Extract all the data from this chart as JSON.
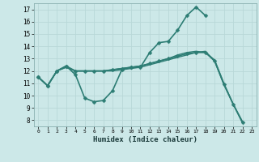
{
  "xlabel": "Humidex (Indice chaleur)",
  "background_color": "#cce8e8",
  "grid_color": "#b8d8d8",
  "line_color": "#2d7d74",
  "xlim": [
    -0.5,
    23.5
  ],
  "ylim": [
    7.5,
    17.5
  ],
  "yticks": [
    8,
    9,
    10,
    11,
    12,
    13,
    14,
    15,
    16,
    17
  ],
  "xticks": [
    0,
    1,
    2,
    3,
    4,
    5,
    6,
    7,
    8,
    9,
    10,
    11,
    12,
    13,
    14,
    15,
    16,
    17,
    18,
    19,
    20,
    21,
    22,
    23
  ],
  "series": [
    {
      "x": [
        0,
        1,
        2,
        3,
        4,
        5,
        6,
        7,
        8,
        9,
        10,
        11,
        12,
        13,
        14,
        15,
        16,
        17,
        18
      ],
      "y": [
        11.5,
        10.8,
        12.0,
        12.4,
        11.7,
        9.8,
        9.5,
        9.6,
        10.4,
        12.1,
        12.3,
        12.3,
        13.5,
        14.3,
        14.4,
        15.3,
        16.5,
        17.2,
        16.5
      ],
      "marker": true,
      "linewidth": 1.2
    },
    {
      "x": [
        0,
        1,
        2,
        3,
        4,
        5,
        6,
        7,
        8,
        9,
        10,
        11,
        12,
        13,
        14,
        15,
        16,
        17,
        18,
        19,
        20,
        21,
        22
      ],
      "y": [
        11.5,
        10.8,
        12.0,
        12.4,
        12.0,
        12.0,
        12.0,
        12.0,
        12.1,
        12.2,
        12.3,
        12.4,
        12.6,
        12.8,
        13.0,
        13.2,
        13.4,
        13.5,
        13.5,
        12.8,
        10.9,
        9.3,
        7.8
      ],
      "marker": true,
      "linewidth": 1.2
    },
    {
      "x": [
        0,
        1,
        2,
        3,
        4,
        5,
        6,
        7,
        8,
        9,
        10,
        11,
        12,
        13,
        14,
        15,
        16,
        17,
        18,
        19,
        20,
        21,
        22
      ],
      "y": [
        11.5,
        10.8,
        12.0,
        12.3,
        12.0,
        12.0,
        12.0,
        12.0,
        12.0,
        12.1,
        12.2,
        12.3,
        12.5,
        12.7,
        12.9,
        13.1,
        13.3,
        13.5,
        13.6,
        12.8,
        10.9,
        9.3,
        7.9
      ],
      "marker": false,
      "linewidth": 1.0
    },
    {
      "x": [
        0,
        1,
        2,
        3,
        4,
        5,
        6,
        7,
        8,
        9,
        10,
        11,
        12,
        13,
        14,
        15,
        16,
        17,
        18,
        19,
        20,
        21,
        22
      ],
      "y": [
        11.5,
        10.8,
        12.0,
        12.3,
        12.0,
        12.0,
        12.0,
        12.0,
        12.1,
        12.2,
        12.3,
        12.4,
        12.6,
        12.8,
        13.0,
        13.3,
        13.5,
        13.6,
        13.5,
        12.9,
        11.0,
        9.3,
        7.8
      ],
      "marker": false,
      "linewidth": 1.0
    }
  ]
}
